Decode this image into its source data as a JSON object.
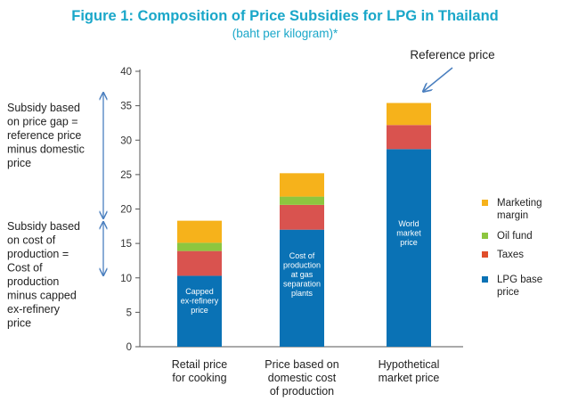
{
  "chart_data": {
    "type": "bar",
    "stacked": true,
    "title": "Figure 1: Composition of Price Subsidies for LPG in Thailand",
    "subtitle": "(baht per kilogram)*",
    "ylim": [
      0,
      40
    ],
    "yticks": [
      0,
      5,
      10,
      15,
      20,
      25,
      30,
      35,
      40
    ],
    "categories": [
      [
        "Retail price",
        "for cooking"
      ],
      [
        "Price based on",
        "domestic cost",
        "of production"
      ],
      [
        "Hypothetical",
        "market price"
      ]
    ],
    "series": [
      {
        "name": "LPG base price",
        "color": "#0a72b5",
        "values": [
          10.3,
          17.0,
          28.7
        ]
      },
      {
        "name": "Taxes",
        "color": "#d9534f",
        "values": [
          3.6,
          3.6,
          3.5
        ]
      },
      {
        "name": "Oil fund",
        "color": "#8dc63f",
        "values": [
          1.2,
          1.2,
          0.0
        ]
      },
      {
        "name": "Marketing margin",
        "color": "#f6b21b",
        "values": [
          3.2,
          3.4,
          3.2
        ]
      }
    ],
    "legend_position": "right",
    "legend": [
      {
        "label": [
          "Marketing",
          "margin"
        ],
        "color": "#f6b21b"
      },
      {
        "label": [
          "Oil fund"
        ],
        "color": "#8dc63f"
      },
      {
        "label": [
          "Taxes"
        ],
        "color": "#e04e2b"
      },
      {
        "label": [
          "LPG base",
          "price"
        ],
        "color": "#0a72b5"
      }
    ],
    "bar_labels": [
      [
        "Capped",
        "ex-refinery",
        "price"
      ],
      [
        "Cost of",
        "production",
        "at gas",
        "separation",
        "plants"
      ],
      [
        "World",
        "market",
        "price"
      ]
    ],
    "annotations": {
      "reference_price": "Reference price",
      "subsidy_gap": [
        "Subsidy based",
        "on price gap =",
        "reference price",
        "minus domestic",
        "price"
      ],
      "subsidy_cost": [
        "Subsidy based",
        "on cost of",
        "production =",
        "Cost of",
        "production",
        "minus capped",
        "ex-refinery",
        "price"
      ]
    },
    "title_color": "#1aa7c9",
    "arrow_color": "#4a7fbf"
  }
}
